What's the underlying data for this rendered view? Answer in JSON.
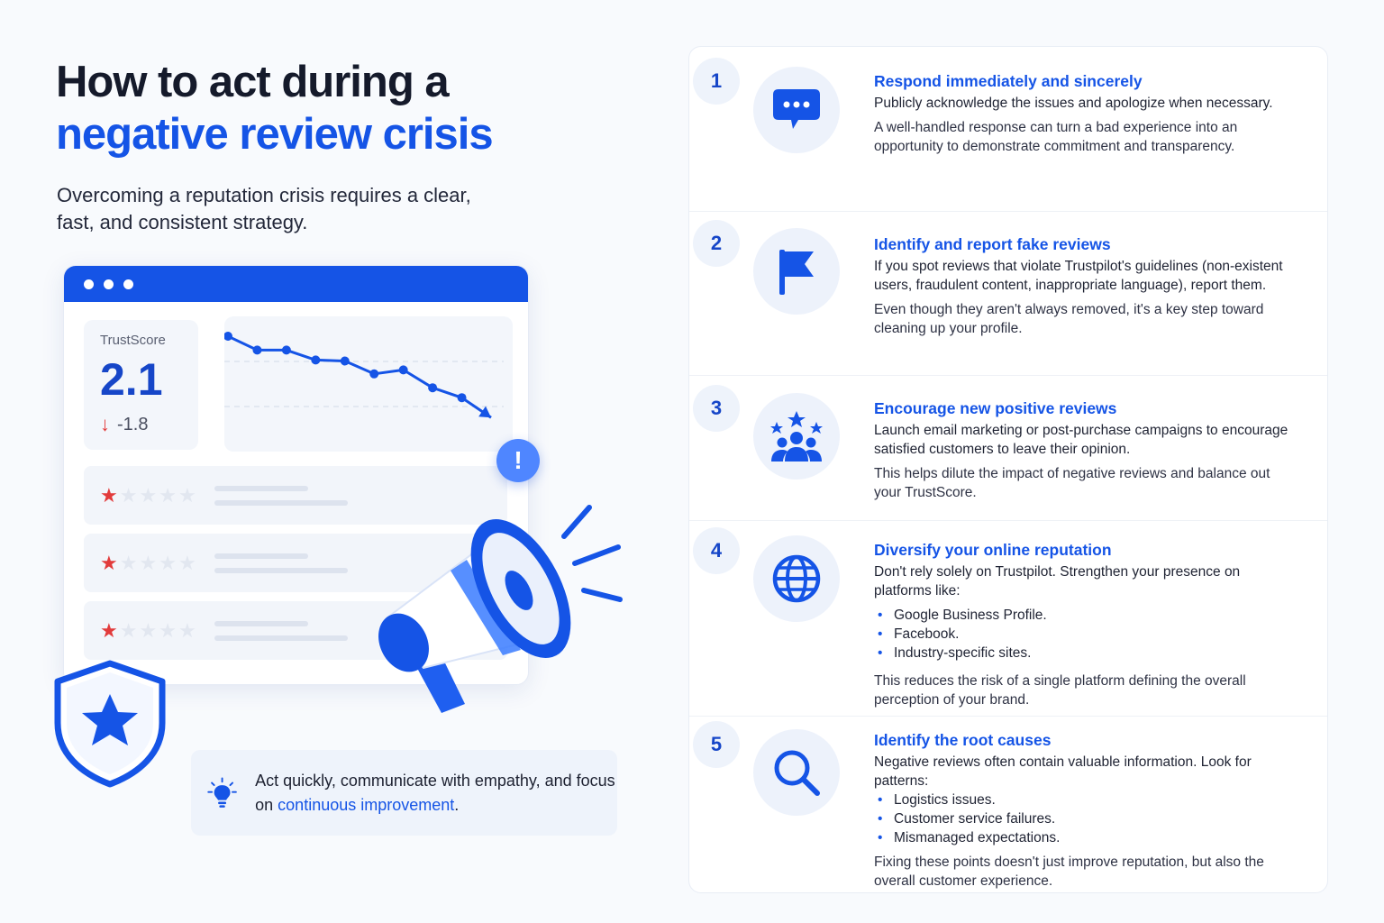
{
  "header": {
    "title_line1": "How to act during a",
    "title_line2": "negative review crisis",
    "subtitle": "Overcoming a reputation crisis requires a clear, fast, and consistent strategy."
  },
  "mockup": {
    "trustscore_label": "TrustScore",
    "trustscore_value": "2.1",
    "trustscore_delta": "-1.8",
    "trend": [
      10,
      8.6,
      8.6,
      7.6,
      7.5,
      6.2,
      6.6,
      4.8,
      3.8,
      1.8
    ],
    "reviews": [
      {
        "stars": 1,
        "max_stars": 5
      },
      {
        "stars": 1,
        "max_stars": 5
      },
      {
        "stars": 1,
        "max_stars": 5
      }
    ],
    "alert_symbol": "!"
  },
  "tip": {
    "text_before": "Act quickly, communicate with empathy, and focus on ",
    "text_accent": "continuous improvement",
    "text_after": "."
  },
  "colors": {
    "accent": "#1554e6",
    "danger": "#e23b3b",
    "soft": "#eef3fb"
  },
  "steps": [
    {
      "number": "1",
      "icon": "chat-bubble-icon",
      "title": "Respond immediately and sincerely",
      "text": "Publicly acknowledge the issues and apologize when necessary.",
      "bullets": [],
      "text2": "A well-handled response can turn a bad experience into an opportunity to demonstrate commitment and transparency."
    },
    {
      "number": "2",
      "icon": "flag-icon",
      "title": "Identify and report fake reviews",
      "text": "If you spot reviews that violate Trustpilot's guidelines (non-existent users, fraudulent content, inappropriate language), report them.",
      "bullets": [],
      "text2": "Even though they aren't always removed, it's a key step toward cleaning up your profile."
    },
    {
      "number": "3",
      "icon": "people-stars-icon",
      "title": "Encourage new positive reviews",
      "text": "Launch email marketing or post-purchase campaigns to encourage satisfied customers to leave their opinion.",
      "bullets": [],
      "text2": "This helps dilute the impact of negative reviews and balance out your TrustScore."
    },
    {
      "number": "4",
      "icon": "globe-icon",
      "title": "Diversify your online reputation",
      "text": "Don't rely solely on Trustpilot. Strengthen your presence on platforms like:",
      "bullets": [
        "Google Business Profile.",
        "Facebook.",
        "Industry-specific sites."
      ],
      "text2": "This reduces the risk of a single platform defining the overall perception of your brand."
    },
    {
      "number": "5",
      "icon": "magnifier-icon",
      "title": "Identify the root causes",
      "text": "Negative reviews often contain valuable information. Look for patterns:",
      "bullets": [
        "Logistics issues.",
        "Customer service failures.",
        "Mismanaged expectations."
      ],
      "text2": "Fixing these points doesn't just improve reputation, but also the overall customer experience."
    }
  ]
}
